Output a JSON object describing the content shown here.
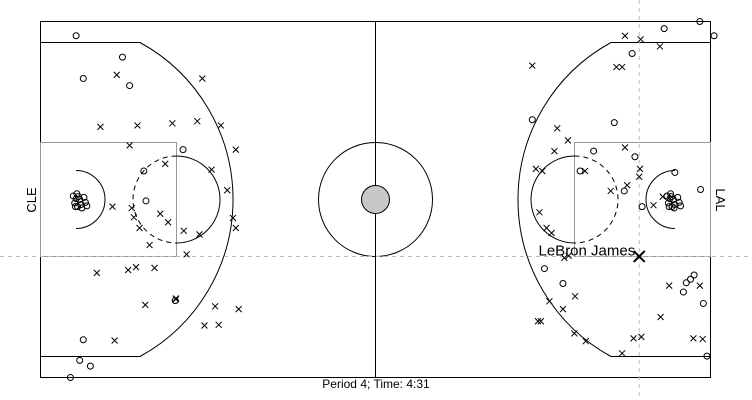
{
  "chart_data": {
    "type": "scatter",
    "title": "",
    "caption": "Period 4; Time: 4:31",
    "left_team": "CLE",
    "right_team": "LAL",
    "highlight": {
      "label": "LeBron James",
      "x": 84.0,
      "y": 17.0
    },
    "crosshair": {
      "x": 84.0,
      "y": 17.0
    },
    "xlim": [
      0,
      94
    ],
    "ylim": [
      0,
      50
    ],
    "series": [
      {
        "marker": "circle",
        "points": [
          [
            5.0,
            48.0
          ],
          [
            6.0,
            42.0
          ],
          [
            12.5,
            41.0
          ],
          [
            11.5,
            45.0
          ],
          [
            14.5,
            29.0
          ],
          [
            20.0,
            32.0
          ],
          [
            14.8,
            24.8
          ],
          [
            6.0,
            5.3
          ],
          [
            5.5,
            2.4
          ],
          [
            7.0,
            1.6
          ],
          [
            4.2,
            0.0
          ],
          [
            18.9,
            10.8
          ],
          [
            5.0,
            25.1
          ],
          [
            5.3,
            25.4
          ],
          [
            5.5,
            25.0
          ],
          [
            4.8,
            24.5
          ],
          [
            5.7,
            24.3
          ],
          [
            5.2,
            24.0
          ],
          [
            6.1,
            25.3
          ],
          [
            4.6,
            25.5
          ],
          [
            6.3,
            24.6
          ],
          [
            5.8,
            23.8
          ],
          [
            6.5,
            24.1
          ],
          [
            5.1,
            25.8
          ],
          [
            4.9,
            24.0
          ],
          [
            87.5,
            49.0
          ],
          [
            83.0,
            45.5
          ],
          [
            92.5,
            50.0
          ],
          [
            94.5,
            48.0
          ],
          [
            83.4,
            31.0
          ],
          [
            81.9,
            26.2
          ],
          [
            75.7,
            29.0
          ],
          [
            77.6,
            31.8
          ],
          [
            89.0,
            28.8
          ],
          [
            84.4,
            24.0
          ],
          [
            91.7,
            14.4
          ],
          [
            91.2,
            13.8
          ],
          [
            90.6,
            13.3
          ],
          [
            90.2,
            12.0
          ],
          [
            93.0,
            10.4
          ],
          [
            93.5,
            3.0
          ],
          [
            92.6,
            26.4
          ],
          [
            73.3,
            13.2
          ],
          [
            70.7,
            15.3
          ],
          [
            69.0,
            36.2
          ],
          [
            80.5,
            35.8
          ],
          [
            88.3,
            25.1
          ],
          [
            88.5,
            25.4
          ],
          [
            88.8,
            25.0
          ],
          [
            88.1,
            24.5
          ],
          [
            89.0,
            24.3
          ],
          [
            88.6,
            24.0
          ],
          [
            89.4,
            25.3
          ],
          [
            87.9,
            25.5
          ],
          [
            89.6,
            24.6
          ],
          [
            88.9,
            23.8
          ],
          [
            89.8,
            24.1
          ],
          [
            88.4,
            25.8
          ],
          [
            88.2,
            24.0
          ]
        ]
      },
      {
        "marker": "x",
        "points": [
          [
            10.7,
            42.5
          ],
          [
            22.7,
            42.0
          ],
          [
            8.4,
            35.2
          ],
          [
            13.6,
            35.4
          ],
          [
            18.5,
            35.7
          ],
          [
            22.0,
            36.0
          ],
          [
            25.3,
            35.4
          ],
          [
            27.4,
            32.0
          ],
          [
            12.5,
            32.6
          ],
          [
            17.5,
            30.0
          ],
          [
            24.0,
            29.2
          ],
          [
            26.2,
            26.3
          ],
          [
            10.1,
            24.0
          ],
          [
            12.8,
            23.8
          ],
          [
            13.1,
            22.5
          ],
          [
            16.8,
            23.0
          ],
          [
            13.9,
            21.0
          ],
          [
            15.3,
            18.6
          ],
          [
            17.9,
            21.8
          ],
          [
            22.3,
            20.1
          ],
          [
            20.1,
            20.6
          ],
          [
            27.4,
            21.0
          ],
          [
            7.9,
            14.7
          ],
          [
            12.3,
            15.1
          ],
          [
            16.0,
            15.4
          ],
          [
            20.5,
            17.3
          ],
          [
            27.0,
            22.4
          ],
          [
            14.7,
            10.2
          ],
          [
            19.0,
            11.0
          ],
          [
            24.5,
            10.0
          ],
          [
            27.8,
            9.6
          ],
          [
            10.4,
            5.2
          ],
          [
            19.0,
            11.1
          ],
          [
            23.0,
            7.3
          ],
          [
            25.0,
            7.4
          ],
          [
            13.4,
            15.5
          ],
          [
            82.0,
            48.0
          ],
          [
            84.2,
            47.5
          ],
          [
            86.9,
            46.5
          ],
          [
            69.0,
            43.8
          ],
          [
            81.6,
            43.6
          ],
          [
            80.8,
            43.6
          ],
          [
            69.5,
            29.3
          ],
          [
            70.4,
            29.0
          ],
          [
            72.1,
            31.8
          ],
          [
            72.5,
            35.0
          ],
          [
            74.0,
            33.3
          ],
          [
            76.4,
            29.0
          ],
          [
            80.0,
            26.2
          ],
          [
            86.0,
            24.2
          ],
          [
            84.1,
            29.3
          ],
          [
            84.0,
            28.2
          ],
          [
            82.0,
            32.3
          ],
          [
            82.3,
            27.0
          ],
          [
            87.3,
            25.4
          ],
          [
            70.0,
            23.2
          ],
          [
            71.0,
            21.0
          ],
          [
            71.7,
            20.3
          ],
          [
            73.5,
            16.8
          ],
          [
            74.1,
            17.1
          ],
          [
            75.0,
            11.4
          ],
          [
            70.2,
            7.9
          ],
          [
            71.4,
            10.7
          ],
          [
            73.3,
            9.6
          ],
          [
            69.8,
            7.9
          ],
          [
            74.9,
            6.2
          ],
          [
            76.5,
            5.1
          ],
          [
            81.6,
            3.4
          ],
          [
            83.2,
            5.5
          ],
          [
            84.3,
            5.7
          ],
          [
            87.0,
            8.5
          ],
          [
            88.2,
            12.9
          ],
          [
            91.6,
            5.5
          ],
          [
            92.9,
            5.4
          ],
          [
            92.5,
            12.9
          ]
        ]
      }
    ]
  }
}
